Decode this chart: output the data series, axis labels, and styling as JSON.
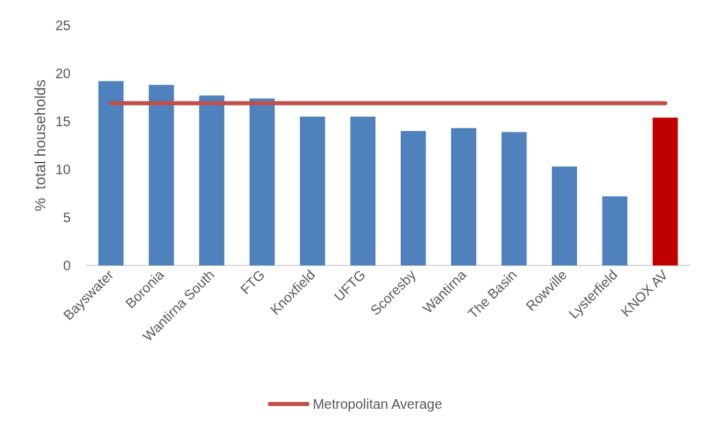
{
  "chart_data": {
    "type": "bar",
    "ylabel": "%  total households",
    "categories": [
      "Bayswater",
      "Boronia",
      "Wantirna South",
      "FTG",
      "Knoxfield",
      "UFTG",
      "Scoresby",
      "Wantirna",
      "The Basin",
      "Rowville",
      "Lysterfield",
      "KNOX AV"
    ],
    "series": [
      {
        "colors": [
          "#4f81bd",
          "#4f81bd",
          "#4f81bd",
          "#4f81bd",
          "#4f81bd",
          "#4f81bd",
          "#4f81bd",
          "#4f81bd",
          "#4f81bd",
          "#4f81bd",
          "#4f81bd",
          "#c00000"
        ],
        "values": [
          19.2,
          18.8,
          17.7,
          17.4,
          15.5,
          15.5,
          14.0,
          14.3,
          13.9,
          10.3,
          7.2,
          15.4
        ]
      },
      {
        "type": "line",
        "name": "Metropolitan Average",
        "color": "#c0504d",
        "values": [
          16.9,
          16.9,
          16.9,
          16.9,
          16.9,
          16.9,
          16.9,
          16.9,
          16.9,
          16.9,
          16.9,
          16.9
        ]
      }
    ],
    "ylim": [
      0,
      25
    ],
    "yticks": [
      0,
      5,
      10,
      15,
      20,
      25
    ],
    "grid": false,
    "legend": "bottom",
    "marker": "none"
  }
}
